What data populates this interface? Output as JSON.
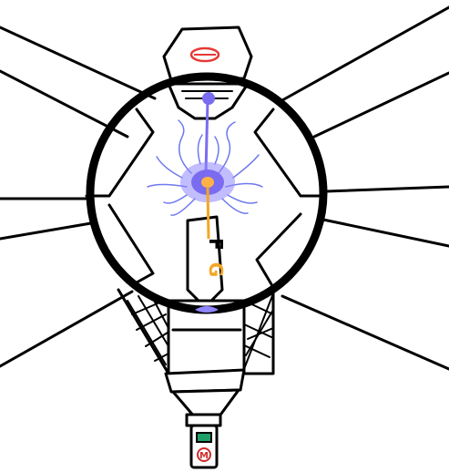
{
  "colors": {
    "ink": "#000000",
    "plasma_core": "#7a6cf0",
    "plasma_glow": "#8f86ff",
    "plasma_tendril": "#6f79ee",
    "energy_beam": "#f4a623",
    "energy_hot": "#ffb347",
    "warning_red": "#e53935",
    "status_green": "#1f9e6a",
    "badge_red": "#d02a2a"
  },
  "icons": {
    "top_emblem": "red-disc-emblem-icon",
    "core": "plasma-core-icon",
    "bottom_status": "green-indicator-icon",
    "bottom_badge": "m-badge-icon"
  },
  "spine": {
    "letters": [
      "F",
      "G"
    ]
  },
  "badge": {
    "letter": "M"
  }
}
